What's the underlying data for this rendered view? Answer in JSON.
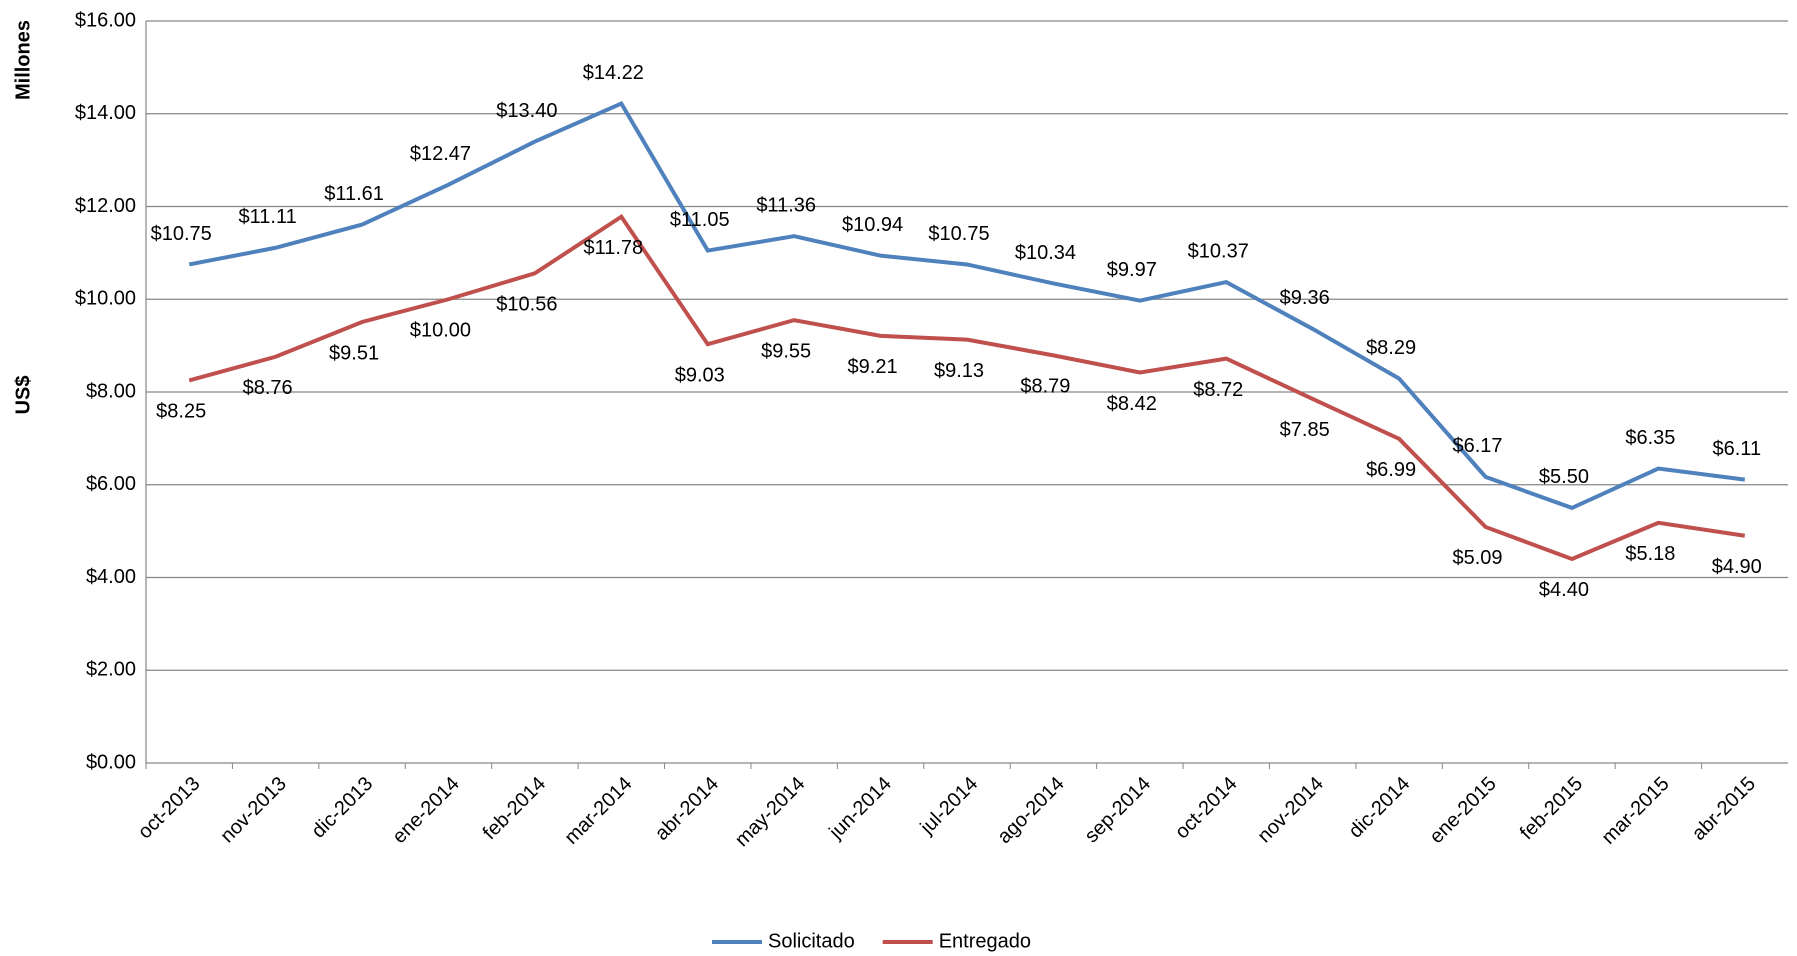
{
  "chart_data": {
    "type": "line",
    "y_label": "US$",
    "y_unit_label": "Millones",
    "categories": [
      "oct-2013",
      "nov-2013",
      "dic-2013",
      "ene-2014",
      "feb-2014",
      "mar-2014",
      "abr-2014",
      "may-2014",
      "jun-2014",
      "jul-2014",
      "ago-2014",
      "sep-2014",
      "oct-2014",
      "nov-2014",
      "dic-2014",
      "ene-2015",
      "feb-2015",
      "mar-2015",
      "abr-2015"
    ],
    "series": [
      {
        "name": "Solicitado",
        "color": "#4f81bd",
        "values": [
          10.75,
          11.11,
          11.61,
          12.47,
          13.4,
          14.22,
          11.05,
          11.36,
          10.94,
          10.75,
          10.34,
          9.97,
          10.37,
          9.36,
          8.29,
          6.17,
          5.5,
          6.35,
          6.11
        ],
        "value_labels": [
          "$10.75",
          "$11.11",
          "$11.61",
          "$12.47",
          "$13.40",
          "$14.22",
          "$11.05",
          "$11.36",
          "$10.94",
          "$10.75",
          "$10.34",
          "$9.97",
          "$10.37",
          "$9.36",
          "$8.29",
          "$6.17",
          "$5.50",
          "$6.35",
          "$6.11"
        ]
      },
      {
        "name": "Entregado",
        "color": "#c0504d",
        "values": [
          8.25,
          8.76,
          9.51,
          10.0,
          10.56,
          11.78,
          9.03,
          9.55,
          9.21,
          9.13,
          8.79,
          8.42,
          8.72,
          7.85,
          6.99,
          5.09,
          4.4,
          5.18,
          4.9
        ],
        "value_labels": [
          "$8.25",
          "$8.76",
          "$9.51",
          "$10.00",
          "$10.56",
          "$11.78",
          "$9.03",
          "$9.55",
          "$9.21",
          "$9.13",
          "$8.79",
          "$8.42",
          "$8.72",
          "$7.85",
          "$6.99",
          "$5.09",
          "$4.40",
          "$5.18",
          "$4.90"
        ]
      }
    ],
    "ylim": [
      0,
      16
    ],
    "yticks": [
      {
        "value": 0,
        "label": "$0.00"
      },
      {
        "value": 2,
        "label": "$2.00"
      },
      {
        "value": 4,
        "label": "$4.00"
      },
      {
        "value": 6,
        "label": "$6.00"
      },
      {
        "value": 8,
        "label": "$8.00"
      },
      {
        "value": 10,
        "label": "$10.00"
      },
      {
        "value": 12,
        "label": "$12.00"
      },
      {
        "value": 14,
        "label": "$14.00"
      },
      {
        "value": 16,
        "label": "$16.00"
      }
    ],
    "grid": true,
    "legend": "bottom"
  }
}
